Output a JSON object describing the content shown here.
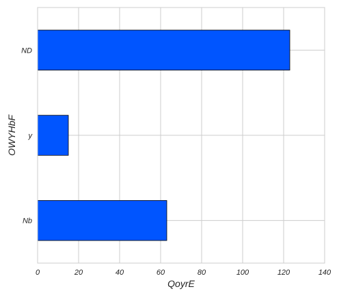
{
  "chart_data": {
    "type": "bar",
    "orientation": "horizontal",
    "categories": [
      "Nb",
      "y",
      "ND"
    ],
    "values": [
      63,
      15,
      123
    ],
    "xlabel": "QoyrE",
    "ylabel": "OWYHbF",
    "xlim": [
      0,
      140
    ],
    "x_ticks": [
      0,
      20,
      40,
      60,
      80,
      100,
      120,
      140
    ],
    "grid": true,
    "bar_color": "#0055ff",
    "bar_edge_color": "#000000"
  }
}
